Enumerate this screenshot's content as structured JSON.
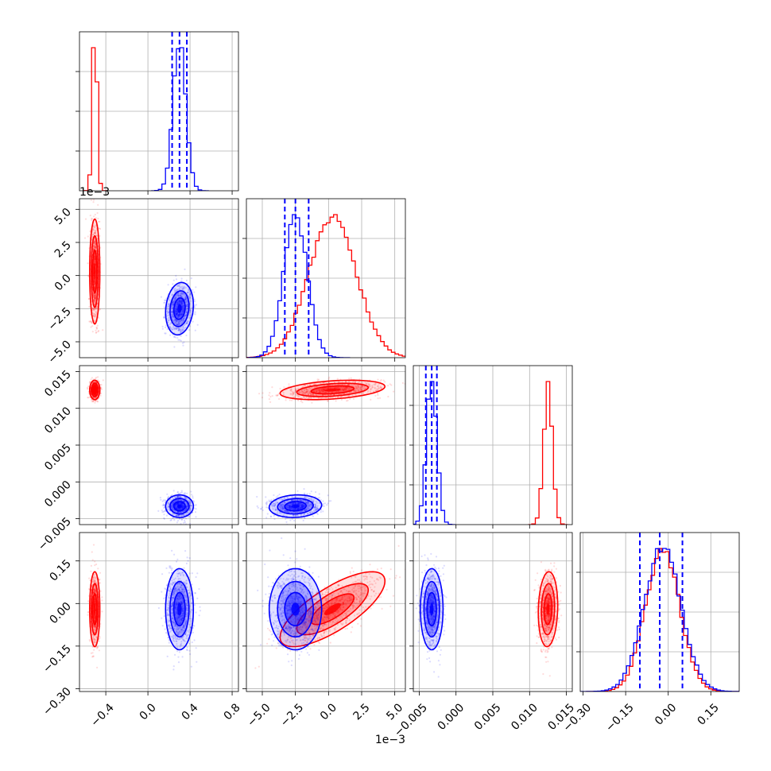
{
  "chart_data": {
    "type": "corner",
    "grid": true,
    "colors": {
      "red": "#ff0000",
      "blue": "#0000ff",
      "grid": "#b0b0b0",
      "axes": "#000000"
    },
    "series": [
      {
        "color": "#ff0000",
        "mean": [
          -0.505,
          0.0003,
          0.0125,
          -0.02
        ],
        "std": [
          0.022,
          0.0018,
          0.0006,
          0.06
        ]
      },
      {
        "color": "#0000ff",
        "mean": [
          0.3,
          -0.0025,
          -0.0033,
          -0.02
        ],
        "std": [
          0.06,
          0.0009,
          0.0007,
          0.065
        ]
      }
    ],
    "axes": [
      {
        "range": [
          -0.65,
          0.86
        ],
        "ticks": [
          -0.4,
          0.0,
          0.4,
          0.8
        ],
        "tick_labels": [
          "−0.4",
          "0.0",
          "0.4",
          "0.8"
        ]
      },
      {
        "range": [
          -0.0062,
          0.0058
        ],
        "ticks": [
          -0.005,
          -0.0025,
          0.0,
          0.0025,
          0.005
        ],
        "tick_labels": [
          "−5.0",
          "−2.5",
          "0.0",
          "2.5",
          "5.0"
        ],
        "offset_label": "1e−3"
      },
      {
        "range": [
          -0.0058,
          0.0158
        ],
        "ticks": [
          -0.005,
          0.0,
          0.005,
          0.01,
          0.015
        ],
        "tick_labels": [
          "−0.005",
          "0.000",
          "0.005",
          "0.010",
          "0.015"
        ]
      },
      {
        "range": [
          -0.31,
          0.25
        ],
        "ticks": [
          -0.3,
          -0.15,
          0.0,
          0.15
        ],
        "tick_labels": [
          "−0.30",
          "−0.15",
          "0.00",
          "0.15"
        ]
      }
    ],
    "quantile_lines": [
      {
        "param": 0,
        "color": "#0000ff",
        "values": [
          0.23,
          0.3,
          0.37
        ]
      },
      {
        "param": 1,
        "color": "#0000ff",
        "values": [
          -0.0033,
          -0.0025,
          -0.0015
        ]
      },
      {
        "param": 2,
        "color": "#0000ff",
        "values": [
          -0.0041,
          -0.0033,
          -0.0026
        ]
      },
      {
        "param": 3,
        "color": "#0000ff",
        "values": [
          -0.1,
          -0.03,
          0.05
        ]
      }
    ],
    "hist_bins": 20
  }
}
